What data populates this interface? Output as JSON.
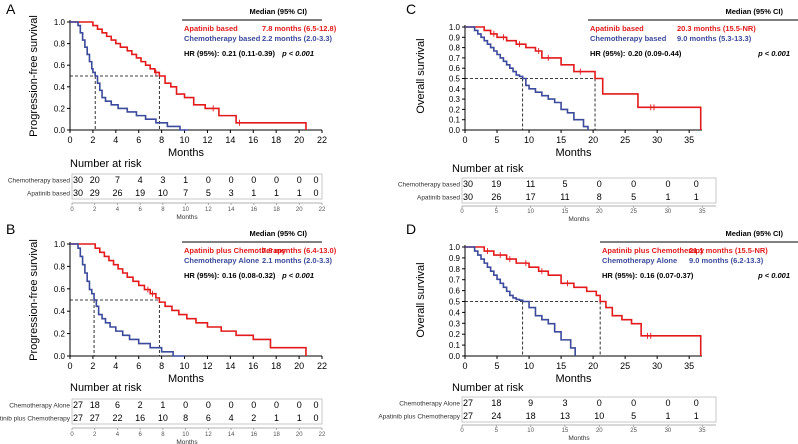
{
  "figure": {
    "panels": [
      {
        "letter": "A",
        "chart_data": {
          "type": "line",
          "subtype": "kaplan-meier",
          "ylabel": "Progression-free survival",
          "xlabel": "Months",
          "xlim": [
            0,
            22
          ],
          "ylim": [
            0,
            1.0
          ],
          "xticks": [
            0,
            2,
            4,
            6,
            8,
            10,
            12,
            14,
            16,
            18,
            20,
            22
          ],
          "yticks": [
            0.0,
            0.2,
            0.4,
            0.6,
            0.8,
            1.0
          ],
          "median_line_y": 0.5,
          "series": [
            {
              "name": "Apatinib based",
              "color": "#e31a1c",
              "median_x": 7.8,
              "x": [
                0,
                2.0,
                2.4,
                2.8,
                3.2,
                3.6,
                4.0,
                4.4,
                5.0,
                5.4,
                5.8,
                6.2,
                6.6,
                7.0,
                7.4,
                7.8,
                8.3,
                8.8,
                9.3,
                10.0,
                10.8,
                11.8,
                13.0,
                14.5,
                20.6
              ],
              "y": [
                1.0,
                0.967,
                0.933,
                0.9,
                0.867,
                0.833,
                0.8,
                0.767,
                0.733,
                0.7,
                0.667,
                0.633,
                0.6,
                0.567,
                0.533,
                0.5,
                0.433,
                0.4,
                0.333,
                0.3,
                0.233,
                0.2,
                0.133,
                0.067,
                0.0
              ],
              "censor_x": [
                7.5,
                12.5,
                14.8
              ]
            },
            {
              "name": "Chemotherapy based",
              "color": "#3b4a9b",
              "median_x": 2.2,
              "x": [
                0,
                0.7,
                0.9,
                1.1,
                1.3,
                1.5,
                1.7,
                1.9,
                2.0,
                2.2,
                2.4,
                2.6,
                2.8,
                3.1,
                3.6,
                4.2,
                5.0,
                5.8,
                6.6,
                7.5,
                8.5,
                9.6,
                10.3
              ],
              "y": [
                1.0,
                0.967,
                0.9,
                0.833,
                0.767,
                0.7,
                0.633,
                0.567,
                0.533,
                0.5,
                0.433,
                0.367,
                0.3,
                0.267,
                0.233,
                0.2,
                0.167,
                0.133,
                0.1,
                0.067,
                0.033,
                0.0,
                0.0
              ],
              "censor_x": []
            }
          ]
        },
        "legend": {
          "header": "Median (95%  CI)",
          "rows": [
            {
              "name": "Apatinib based",
              "median": "7.8 months (6.5-12.8)",
              "color": "#e31a1c"
            },
            {
              "name": "Chemotherapy based",
              "median": "2.2 months (2.0-3.3)",
              "color": "#3b4a9b"
            }
          ],
          "hr_label": "HR (95%):",
          "hr_value": "0.21 (0.11-0.39)",
          "p_value": "p < 0.001"
        },
        "risk_table": {
          "title": "Number at risk",
          "xlabel": "Months",
          "times": [
            0,
            2,
            4,
            6,
            8,
            10,
            12,
            14,
            16,
            18,
            20,
            22
          ],
          "rows": [
            {
              "label": "Chemotherapy based",
              "values": [
                30,
                20,
                7,
                4,
                3,
                1,
                0,
                0,
                0,
                0,
                0,
                0
              ]
            },
            {
              "label": "Apatinib based",
              "values": [
                30,
                29,
                26,
                19,
                10,
                7,
                5,
                3,
                1,
                1,
                1,
                0
              ]
            }
          ]
        }
      },
      {
        "letter": "B",
        "chart_data": {
          "type": "line",
          "subtype": "kaplan-meier",
          "ylabel": "Progression-free survival",
          "xlabel": "Months",
          "xlim": [
            0,
            22
          ],
          "ylim": [
            0,
            1.0
          ],
          "xticks": [
            0,
            2,
            4,
            6,
            8,
            10,
            12,
            14,
            16,
            18,
            20,
            22
          ],
          "yticks": [
            0.0,
            0.2,
            0.4,
            0.6,
            0.8,
            1.0
          ],
          "median_line_y": 0.5,
          "series": [
            {
              "name": "Apatinib plus Chemotherapy",
              "color": "#e31a1c",
              "median_x": 7.8,
              "x": [
                0,
                2.2,
                2.6,
                3.0,
                3.4,
                3.8,
                4.2,
                4.6,
                5.0,
                5.5,
                6.0,
                6.5,
                7.0,
                7.5,
                7.8,
                8.3,
                8.9,
                9.5,
                10.2,
                11.0,
                12.0,
                13.2,
                14.5,
                16.0,
                17.5,
                20.6
              ],
              "y": [
                1.0,
                0.963,
                0.926,
                0.889,
                0.852,
                0.815,
                0.778,
                0.741,
                0.704,
                0.667,
                0.63,
                0.593,
                0.556,
                0.519,
                0.481,
                0.444,
                0.407,
                0.37,
                0.333,
                0.296,
                0.259,
                0.222,
                0.185,
                0.148,
                0.074,
                0.0
              ],
              "censor_x": [
                6.8,
                7.2
              ]
            },
            {
              "name": "Chemotherapy Alone",
              "color": "#3b4a9b",
              "median_x": 2.1,
              "x": [
                0,
                0.7,
                0.9,
                1.1,
                1.3,
                1.5,
                1.7,
                1.9,
                2.1,
                2.3,
                2.5,
                2.8,
                3.1,
                3.5,
                4.0,
                4.6,
                5.2,
                6.0,
                7.0,
                8.0,
                9.0,
                10.0
              ],
              "y": [
                1.0,
                0.963,
                0.889,
                0.815,
                0.741,
                0.667,
                0.593,
                0.556,
                0.5,
                0.444,
                0.37,
                0.333,
                0.296,
                0.259,
                0.222,
                0.185,
                0.148,
                0.111,
                0.074,
                0.037,
                0.0,
                0.0
              ],
              "censor_x": []
            }
          ]
        },
        "legend": {
          "header": "Median (95%  CI)",
          "rows": [
            {
              "name": "Apatinib plus Chemotherapy",
              "median": "7.8 months (6.4-13.0)",
              "color": "#e31a1c"
            },
            {
              "name": "Chemotherapy Alone",
              "median": "2.1 months (2.0-3.3)",
              "color": "#3b4a9b"
            }
          ],
          "hr_label": "HR (95%):",
          "hr_value": "0.16 (0.08-0.32)",
          "p_value": "p < 0.001"
        },
        "risk_table": {
          "title": "Number at risk",
          "xlabel": "Months",
          "times": [
            0,
            2,
            4,
            6,
            8,
            10,
            12,
            14,
            16,
            18,
            20,
            22
          ],
          "rows": [
            {
              "label": "Chemotherapy Alone",
              "values": [
                27,
                18,
                6,
                2,
                1,
                0,
                0,
                0,
                0,
                0,
                0,
                0
              ]
            },
            {
              "label": "Apatinib plus Chemotherapy",
              "values": [
                27,
                27,
                22,
                16,
                10,
                8,
                6,
                4,
                2,
                1,
                1,
                0
              ]
            }
          ]
        }
      },
      {
        "letter": "C",
        "chart_data": {
          "type": "line",
          "subtype": "kaplan-meier",
          "ylabel": "Overall survival",
          "xlabel": "Months",
          "xlim": [
            0,
            37
          ],
          "ylim": [
            0,
            1.0
          ],
          "xticks": [
            0,
            5,
            10,
            15,
            20,
            25,
            30,
            35
          ],
          "yticks": [
            0.0,
            0.1,
            0.2,
            0.3,
            0.4,
            0.5,
            0.6,
            0.7,
            0.8,
            0.9,
            1.0
          ],
          "median_line_y": 0.5,
          "series": [
            {
              "name": "Apatinib based",
              "color": "#e31a1c",
              "median_x": 20.3,
              "x": [
                0,
                3.0,
                4.0,
                5.0,
                6.5,
                8.0,
                9.5,
                11.0,
                12.0,
                15.0,
                17.0,
                20.3,
                21.5,
                27.0,
                36.8
              ],
              "y": [
                1.0,
                0.967,
                0.933,
                0.9,
                0.867,
                0.833,
                0.8,
                0.767,
                0.7,
                0.633,
                0.567,
                0.5,
                0.35,
                0.22,
                0.0
              ],
              "censor_x": [
                4.5,
                6.0,
                8.5,
                11.5,
                13.0,
                18.0,
                29.0,
                29.5
              ]
            },
            {
              "name": "Chemotherapy based",
              "color": "#3b4a9b",
              "median_x": 9.0,
              "x": [
                0,
                1.5,
                2.0,
                2.5,
                3.0,
                3.5,
                4.0,
                4.5,
                5.0,
                5.5,
                6.0,
                6.5,
                7.0,
                7.5,
                8.0,
                8.5,
                9.0,
                9.5,
                10.0,
                11.0,
                12.0,
                13.0,
                14.0,
                15.0,
                16.0,
                17.0,
                18.5,
                19.2
              ],
              "y": [
                1.0,
                0.967,
                0.933,
                0.9,
                0.867,
                0.833,
                0.8,
                0.767,
                0.733,
                0.7,
                0.667,
                0.633,
                0.6,
                0.567,
                0.533,
                0.52,
                0.5,
                0.433,
                0.4,
                0.367,
                0.333,
                0.3,
                0.267,
                0.2,
                0.167,
                0.1,
                0.033,
                0.0
              ],
              "censor_x": []
            }
          ]
        },
        "legend": {
          "header": "Median (95%  CI)",
          "rows": [
            {
              "name": "Apatinib based",
              "median": "20.3 months (15.5-NR)",
              "color": "#e31a1c"
            },
            {
              "name": "Chemotherapy based",
              "median": "9.0 months (5.3-13.3)",
              "color": "#3b4a9b"
            }
          ],
          "hr_label": "HR (95%):",
          "hr_value": "0.20 (0.09-0.44)",
          "p_value": "p < 0.001"
        },
        "risk_table": {
          "title": "Number at risk",
          "xlabel": "Months",
          "times": [
            0,
            5,
            10,
            15,
            20,
            25,
            30,
            35
          ],
          "rows": [
            {
              "label": "Chemotherapy based",
              "values": [
                30,
                19,
                11,
                5,
                0,
                0,
                0,
                0
              ]
            },
            {
              "label": "Apatinib based",
              "values": [
                30,
                26,
                17,
                11,
                8,
                5,
                1,
                1
              ]
            }
          ]
        }
      },
      {
        "letter": "D",
        "chart_data": {
          "type": "line",
          "subtype": "kaplan-meier",
          "ylabel": "Overall survival",
          "xlabel": "Months",
          "xlim": [
            0,
            37
          ],
          "ylim": [
            0,
            1.0
          ],
          "xticks": [
            0,
            5,
            10,
            15,
            20,
            25,
            30,
            35
          ],
          "yticks": [
            0.0,
            0.1,
            0.2,
            0.3,
            0.4,
            0.5,
            0.6,
            0.7,
            0.8,
            0.9,
            1.0
          ],
          "median_line_y": 0.5,
          "series": [
            {
              "name": "Apatinib plus Chemotherapy",
              "color": "#e31a1c",
              "median_x": 21.1,
              "x": [
                0,
                3.0,
                4.5,
                6.5,
                8.0,
                10.0,
                11.5,
                13.0,
                15.0,
                17.0,
                19.0,
                20.5,
                21.1,
                22.0,
                23.0,
                24.5,
                26.0,
                27.5,
                36.8
              ],
              "y": [
                1.0,
                0.963,
                0.926,
                0.889,
                0.852,
                0.815,
                0.778,
                0.741,
                0.667,
                0.63,
                0.593,
                0.556,
                0.5,
                0.444,
                0.37,
                0.333,
                0.296,
                0.185,
                0.0
              ],
              "censor_x": [
                3.5,
                5.5,
                7.0,
                9.5,
                12.0,
                16.0,
                28.5,
                29.0
              ]
            },
            {
              "name": "Chemotherapy Alone",
              "color": "#3b4a9b",
              "median_x": 9.0,
              "x": [
                0,
                1.5,
                2.0,
                2.5,
                3.0,
                3.5,
                4.0,
                4.5,
                5.0,
                5.5,
                6.0,
                6.5,
                7.0,
                7.5,
                8.0,
                8.5,
                9.0,
                10.0,
                11.0,
                12.0,
                13.0,
                14.0,
                15.0,
                16.5,
                17.2
              ],
              "y": [
                1.0,
                0.963,
                0.926,
                0.889,
                0.852,
                0.815,
                0.778,
                0.741,
                0.704,
                0.667,
                0.63,
                0.593,
                0.556,
                0.533,
                0.519,
                0.512,
                0.5,
                0.444,
                0.37,
                0.333,
                0.296,
                0.222,
                0.148,
                0.074,
                0.0
              ],
              "censor_x": []
            }
          ]
        },
        "legend": {
          "header": "Median (95%  CI)",
          "rows": [
            {
              "name": "Apatinib plus Chemotherapy",
              "median": "21.1 months (15.5-NR)",
              "color": "#e31a1c"
            },
            {
              "name": "Chemotherapy Alone",
              "median": "9.0 months (6.2-13.3)",
              "color": "#3b4a9b"
            }
          ],
          "hr_label": "HR (95%):",
          "hr_value": "0.16 (0.07-0.37)",
          "p_value": "p < 0.001"
        },
        "risk_table": {
          "title": "Number at risk",
          "xlabel": "Months",
          "times": [
            0,
            5,
            10,
            15,
            20,
            25,
            30,
            35
          ],
          "rows": [
            {
              "label": "Chemotherapy Alone",
              "values": [
                27,
                18,
                9,
                3,
                0,
                0,
                0,
                0
              ]
            },
            {
              "label": "Apatinib plus Chemotherapy",
              "values": [
                27,
                24,
                18,
                13,
                10,
                5,
                1,
                1
              ]
            }
          ]
        }
      }
    ]
  }
}
